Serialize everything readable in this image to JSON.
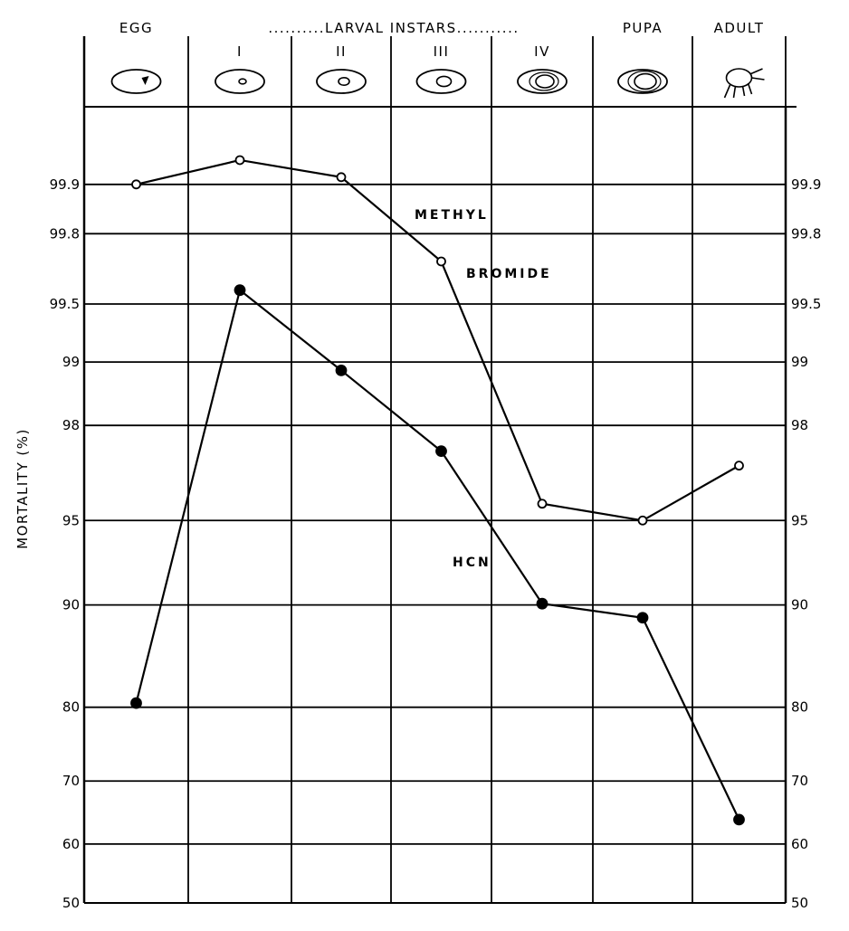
{
  "chart_data": {
    "type": "line",
    "title": "",
    "xlabel": "",
    "ylabel": "MORTALITY (%)",
    "y_scale": "probit",
    "ylim": [
      50,
      99.95
    ],
    "grid": true,
    "legend": "none",
    "group_label": "..........LARVAL INSTARS...........",
    "stage_labels": [
      "EGG",
      "",
      "",
      "",
      "",
      "PUPA",
      "ADULT"
    ],
    "categories": [
      "EGG",
      "I",
      "II",
      "III",
      "IV",
      "PUPA",
      "ADULT"
    ],
    "instar_labels": [
      "",
      "I",
      "II",
      "III",
      "IV",
      "",
      ""
    ],
    "stage_icons": [
      "egg-icon",
      "larva-instar-1-icon",
      "larva-instar-2-icon",
      "larva-instar-3-icon",
      "larva-instar-4-icon",
      "pupa-icon",
      "adult-weevil-icon"
    ],
    "y_ticks": [
      50,
      60,
      70,
      80,
      90,
      95,
      98,
      99,
      99.5,
      99.8,
      99.9
    ],
    "y_tick_labels_left": [
      "50",
      "60",
      "70",
      "80",
      "90",
      "95",
      "98",
      "99",
      "99.5",
      "99.8",
      "99.9"
    ],
    "y_tick_labels_right": [
      "50",
      "60",
      "70",
      "80",
      "90",
      "95",
      "98",
      "99",
      "99.5",
      "99.8",
      "99.9"
    ],
    "series": [
      {
        "name": "METHYL BROMIDE",
        "label_lines": [
          "METHYL",
          "BROMIDE"
        ],
        "marker": "open-circle",
        "values": [
          99.9,
          99.93,
          99.91,
          99.71,
          95.7,
          95.0,
          97.0
        ]
      },
      {
        "name": "HCN",
        "label_lines": [
          "HCN"
        ],
        "marker": "filled-circle",
        "values": [
          80.5,
          99.58,
          98.9,
          97.4,
          90.1,
          89.0,
          64
        ]
      }
    ]
  }
}
